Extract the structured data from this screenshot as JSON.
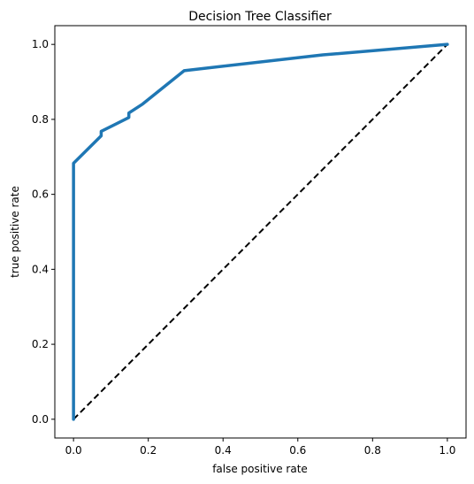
{
  "chart_data": {
    "type": "line",
    "title": "Decision Tree Classifier",
    "xlabel": "false positive rate",
    "ylabel": "true positive rate",
    "xlim": [
      -0.05,
      1.05
    ],
    "ylim": [
      -0.05,
      1.05
    ],
    "xticks": [
      0.0,
      0.2,
      0.4,
      0.6,
      0.8,
      1.0
    ],
    "yticks": [
      0.0,
      0.2,
      0.4,
      0.6,
      0.8,
      1.0
    ],
    "xtick_labels": [
      "0.0",
      "0.2",
      "0.4",
      "0.6",
      "0.8",
      "1.0"
    ],
    "ytick_labels": [
      "0.0",
      "0.2",
      "0.4",
      "0.6",
      "0.8",
      "1.0"
    ],
    "grid": false,
    "series": [
      {
        "style": "solid",
        "color": "#1f77b4",
        "x": [
          0.0,
          0.0,
          0.074,
          0.074,
          0.148,
          0.148,
          0.185,
          0.296,
          0.667,
          1.0
        ],
        "y": [
          0.0,
          0.683,
          0.756,
          0.768,
          0.805,
          0.817,
          0.841,
          0.93,
          0.972,
          1.0
        ]
      },
      {
        "style": "dashed",
        "color": "#000000",
        "x": [
          0.0,
          1.0
        ],
        "y": [
          0.0,
          1.0
        ]
      }
    ]
  }
}
